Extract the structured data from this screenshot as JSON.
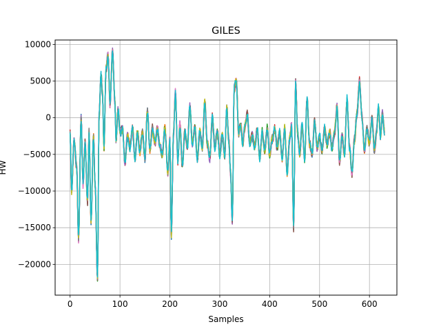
{
  "chart_data": {
    "type": "line",
    "title": "GILES",
    "xlabel": "Samples",
    "ylabel": "HW",
    "xlim": [
      -30,
      655
    ],
    "ylim": [
      -24200,
      10600
    ],
    "grid": true,
    "legend": "none",
    "x_ticks": [
      0,
      100,
      200,
      300,
      400,
      500,
      600
    ],
    "y_ticks": [
      10000,
      5000,
      0,
      -5000,
      -10000,
      -15000,
      -20000
    ],
    "n_samples": 630,
    "anchors": [
      [
        0,
        -2000
      ],
      [
        3,
        -10000
      ],
      [
        8,
        -3000
      ],
      [
        13,
        -6500
      ],
      [
        17,
        -16500
      ],
      [
        22,
        0
      ],
      [
        26,
        -9000
      ],
      [
        30,
        -3500
      ],
      [
        35,
        -11500
      ],
      [
        38,
        -2000
      ],
      [
        42,
        -14000
      ],
      [
        47,
        -2500
      ],
      [
        50,
        -9000
      ],
      [
        55,
        -22000
      ],
      [
        58,
        0
      ],
      [
        62,
        6000
      ],
      [
        65,
        3000
      ],
      [
        68,
        -4000
      ],
      [
        72,
        6500
      ],
      [
        76,
        8500
      ],
      [
        80,
        2000
      ],
      [
        85,
        9000
      ],
      [
        90,
        2000
      ],
      [
        92,
        -3000
      ],
      [
        96,
        1000
      ],
      [
        100,
        -2000
      ],
      [
        105,
        -1500
      ],
      [
        110,
        -6000
      ],
      [
        115,
        -2500
      ],
      [
        120,
        -4000
      ],
      [
        125,
        -1500
      ],
      [
        130,
        -5500
      ],
      [
        135,
        -2000
      ],
      [
        140,
        -4500
      ],
      [
        145,
        -2000
      ],
      [
        150,
        -5500
      ],
      [
        155,
        1000
      ],
      [
        160,
        -4500
      ],
      [
        165,
        -1500
      ],
      [
        170,
        -3500
      ],
      [
        175,
        -1500
      ],
      [
        180,
        -4000
      ],
      [
        185,
        -5000
      ],
      [
        190,
        -1500
      ],
      [
        196,
        -7500
      ],
      [
        200,
        -3000
      ],
      [
        203,
        -16000
      ],
      [
        207,
        -2500
      ],
      [
        211,
        3500
      ],
      [
        216,
        -6000
      ],
      [
        220,
        -1000
      ],
      [
        225,
        -6500
      ],
      [
        230,
        -2000
      ],
      [
        235,
        -4000
      ],
      [
        240,
        1500
      ],
      [
        245,
        -3500
      ],
      [
        250,
        -1500
      ],
      [
        255,
        -5500
      ],
      [
        260,
        -2000
      ],
      [
        265,
        -4000
      ],
      [
        270,
        2000
      ],
      [
        275,
        -3500
      ],
      [
        280,
        -5500
      ],
      [
        285,
        0
      ],
      [
        290,
        -4000
      ],
      [
        295,
        -2000
      ],
      [
        300,
        -5000
      ],
      [
        305,
        -2500
      ],
      [
        310,
        -5000
      ],
      [
        314,
        1500
      ],
      [
        318,
        -3000
      ],
      [
        322,
        -8000
      ],
      [
        325,
        -14000
      ],
      [
        329,
        4000
      ],
      [
        333,
        5000
      ],
      [
        338,
        -2000
      ],
      [
        342,
        -1000
      ],
      [
        346,
        -3500
      ],
      [
        350,
        -1500
      ],
      [
        355,
        500
      ],
      [
        360,
        -3500
      ],
      [
        365,
        -2500
      ],
      [
        370,
        -4000
      ],
      [
        375,
        -1500
      ],
      [
        380,
        -5500
      ],
      [
        385,
        -2000
      ],
      [
        390,
        -4500
      ],
      [
        395,
        -1500
      ],
      [
        400,
        -5000
      ],
      [
        405,
        -3000
      ],
      [
        410,
        -1500
      ],
      [
        415,
        -4000
      ],
      [
        420,
        -2000
      ],
      [
        425,
        -5500
      ],
      [
        430,
        -1500
      ],
      [
        435,
        -7500
      ],
      [
        440,
        -3000
      ],
      [
        444,
        -1000
      ],
      [
        448,
        -15000
      ],
      [
        452,
        5000
      ],
      [
        456,
        -2000
      ],
      [
        460,
        -5000
      ],
      [
        465,
        -1000
      ],
      [
        470,
        -5500
      ],
      [
        475,
        2500
      ],
      [
        480,
        -3500
      ],
      [
        485,
        -5000
      ],
      [
        490,
        -500
      ],
      [
        495,
        -4000
      ],
      [
        500,
        -2500
      ],
      [
        505,
        -4500
      ],
      [
        510,
        -1500
      ],
      [
        515,
        -3500
      ],
      [
        520,
        -2000
      ],
      [
        525,
        -4000
      ],
      [
        530,
        -2000
      ],
      [
        535,
        1500
      ],
      [
        540,
        -6000
      ],
      [
        545,
        -2500
      ],
      [
        550,
        -5000
      ],
      [
        555,
        2500
      ],
      [
        560,
        -4000
      ],
      [
        565,
        -7500
      ],
      [
        570,
        -3000
      ],
      [
        575,
        500
      ],
      [
        580,
        5000
      ],
      [
        585,
        0
      ],
      [
        590,
        -4500
      ],
      [
        595,
        -1500
      ],
      [
        600,
        -3500
      ],
      [
        605,
        0
      ],
      [
        610,
        -4500
      ],
      [
        614,
        -2000
      ],
      [
        618,
        1500
      ],
      [
        622,
        -2500
      ],
      [
        626,
        500
      ],
      [
        630,
        -2000
      ]
    ],
    "series_colors": [
      "#1f77b4",
      "#ff7f0e",
      "#2ca02c",
      "#d62728",
      "#9467bd",
      "#8c564b",
      "#e377c2",
      "#7f7f7f",
      "#bcbd22",
      "#17becf"
    ]
  }
}
